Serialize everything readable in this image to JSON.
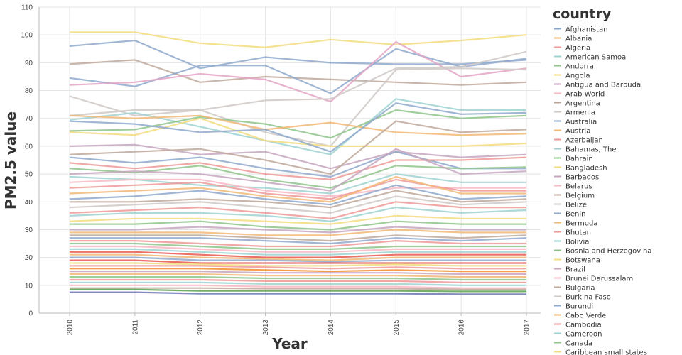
{
  "chart_data": {
    "type": "line",
    "title": "",
    "xlabel": "Year",
    "ylabel": "PM2.5 value",
    "x": [
      "2010",
      "2011",
      "2012",
      "2013",
      "2014",
      "2015",
      "2016",
      "2017"
    ],
    "ylim": [
      0,
      110
    ],
    "yticks": [
      0,
      10,
      20,
      30,
      40,
      50,
      60,
      70,
      80,
      90,
      100,
      110
    ],
    "grid": true,
    "legend": {
      "title": "country",
      "placement": "right",
      "entries": [
        {
          "name": "Afghanistan",
          "color": "#8fa9cc"
        },
        {
          "name": "Albania",
          "color": "#f2b877"
        },
        {
          "name": "Algeria",
          "color": "#ee9a99"
        },
        {
          "name": "American Samoa",
          "color": "#9fd3d1"
        },
        {
          "name": "Andorra",
          "color": "#8fc48b"
        },
        {
          "name": "Angola",
          "color": "#f3dc7f"
        },
        {
          "name": "Antigua and Barbuda",
          "color": "#c7a6c0"
        },
        {
          "name": "Arab World",
          "color": "#f7b9c3"
        },
        {
          "name": "Argentina",
          "color": "#bfa99c"
        },
        {
          "name": "Armenia",
          "color": "#cfc9c6"
        },
        {
          "name": "Australia",
          "color": "#8fa9cc"
        },
        {
          "name": "Austria",
          "color": "#f2b877"
        },
        {
          "name": "Azerbaijan",
          "color": "#ee9a99"
        },
        {
          "name": "Bahamas, The",
          "color": "#9fd3d1"
        },
        {
          "name": "Bahrain",
          "color": "#8fc48b"
        },
        {
          "name": "Bangladesh",
          "color": "#f3dc7f"
        },
        {
          "name": "Barbados",
          "color": "#c7a6c0"
        },
        {
          "name": "Belarus",
          "color": "#f7b9c3"
        },
        {
          "name": "Belgium",
          "color": "#bfa99c"
        },
        {
          "name": "Belize",
          "color": "#cfc9c6"
        },
        {
          "name": "Benin",
          "color": "#8fa9cc"
        },
        {
          "name": "Bermuda",
          "color": "#f2b877"
        },
        {
          "name": "Bhutan",
          "color": "#ee9a99"
        },
        {
          "name": "Bolivia",
          "color": "#9fd3d1"
        },
        {
          "name": "Bosnia and Herzegovina",
          "color": "#8fc48b"
        },
        {
          "name": "Botswana",
          "color": "#f3dc7f"
        },
        {
          "name": "Brazil",
          "color": "#c7a6c0"
        },
        {
          "name": "Brunei Darussalam",
          "color": "#f7b9c3"
        },
        {
          "name": "Bulgaria",
          "color": "#bfa99c"
        },
        {
          "name": "Burkina Faso",
          "color": "#cfc9c6"
        },
        {
          "name": "Burundi",
          "color": "#8fa9cc"
        },
        {
          "name": "Cabo Verde",
          "color": "#f2b877"
        },
        {
          "name": "Cambodia",
          "color": "#ee9a99"
        },
        {
          "name": "Cameroon",
          "color": "#9fd3d1"
        },
        {
          "name": "Canada",
          "color": "#8fc48b"
        },
        {
          "name": "Caribbean small states",
          "color": "#f3dc7f"
        }
      ]
    },
    "series": [
      {
        "values": [
          101,
          101,
          97,
          95.5,
          98.3,
          96.5,
          98,
          100
        ],
        "color": "#f3dc7f"
      },
      {
        "values": [
          96,
          98,
          88,
          92,
          90,
          89.5,
          89.5,
          91
        ],
        "color": "#8fa9cc"
      },
      {
        "values": [
          89.5,
          91,
          83,
          85,
          84,
          83,
          82,
          83
        ],
        "color": "#bfa99c"
      },
      {
        "values": [
          84.5,
          81.5,
          89,
          89,
          79,
          95,
          88.5,
          91.5
        ],
        "color": "#8fa9cc"
      },
      {
        "values": [
          82,
          83,
          86,
          84,
          76,
          97.5,
          85,
          88
        ],
        "color": "#e4a4c6"
      },
      {
        "values": [
          78,
          71,
          73,
          76.5,
          77,
          88,
          88.5,
          94
        ],
        "color": "#cfc9c6"
      },
      {
        "values": [
          71,
          73,
          73,
          65,
          60,
          87.5,
          88,
          87.5
        ],
        "color": "#cfc9c6"
      },
      {
        "values": [
          69.5,
          72,
          67,
          62,
          57,
          77,
          73,
          73
        ],
        "color": "#9fd3d1"
      },
      {
        "values": [
          65.5,
          66,
          70.5,
          68,
          63,
          73,
          70,
          71
        ],
        "color": "#8fc48b"
      },
      {
        "values": [
          71,
          70,
          71,
          66,
          68.5,
          65,
          64,
          64.5
        ],
        "color": "#f2b877"
      },
      {
        "values": [
          65,
          64,
          70,
          62,
          60,
          60,
          60,
          61
        ],
        "color": "#f3dc7f"
      },
      {
        "values": [
          69,
          68,
          65,
          66,
          58,
          75.5,
          71.5,
          72
        ],
        "color": "#8fa9cc"
      },
      {
        "values": [
          60,
          60.5,
          57,
          58,
          52,
          58,
          56,
          57
        ],
        "color": "#c7a6c0"
      },
      {
        "values": [
          57,
          58,
          59,
          55,
          50,
          69,
          65,
          66
        ],
        "color": "#bfa99c"
      },
      {
        "values": [
          56,
          54,
          56,
          52,
          49,
          58,
          52,
          52
        ],
        "color": "#8fa9cc"
      },
      {
        "values": [
          54,
          52,
          54,
          50,
          48,
          55,
          55,
          56
        ],
        "color": "#ee9a99"
      },
      {
        "values": [
          52,
          50.5,
          53,
          48,
          45,
          53,
          52,
          52.5
        ],
        "color": "#8fc48b"
      },
      {
        "values": [
          50,
          51,
          50,
          47,
          44,
          59,
          50,
          51
        ],
        "color": "#c7a6c0"
      },
      {
        "values": [
          49,
          48,
          46,
          45,
          43,
          50,
          47,
          47
        ],
        "color": "#9fd3d1"
      },
      {
        "values": [
          47,
          48,
          48,
          44,
          42,
          45,
          45,
          45
        ],
        "color": "#f7b9c3"
      },
      {
        "values": [
          45,
          46,
          47,
          43,
          41,
          48,
          44,
          44
        ],
        "color": "#ee9a99"
      },
      {
        "values": [
          43,
          44,
          45,
          42,
          40,
          49,
          43,
          43
        ],
        "color": "#f2b877"
      },
      {
        "values": [
          41,
          42,
          44,
          41,
          39,
          46,
          41,
          42
        ],
        "color": "#8fa9cc"
      },
      {
        "values": [
          40,
          40,
          41,
          40,
          38,
          44,
          40,
          41
        ],
        "color": "#bfa99c"
      },
      {
        "values": [
          38,
          39,
          40,
          38,
          36,
          42,
          39,
          40
        ],
        "color": "#cfc9c6"
      },
      {
        "values": [
          36,
          37,
          38,
          36,
          34,
          40,
          38,
          38
        ],
        "color": "#ee9a99"
      },
      {
        "values": [
          35,
          36,
          36,
          35,
          33,
          38,
          36,
          37
        ],
        "color": "#9fd3d1"
      },
      {
        "values": [
          33,
          34,
          34,
          33,
          32,
          35,
          34,
          34
        ],
        "color": "#f3dc7f"
      },
      {
        "values": [
          32,
          32,
          33,
          31,
          30,
          33,
          32,
          32
        ],
        "color": "#8fc48b"
      },
      {
        "values": [
          30,
          30,
          31,
          30,
          29,
          31,
          30,
          30
        ],
        "color": "#c7a6c0"
      },
      {
        "values": [
          29,
          29,
          29,
          28,
          28,
          30,
          29,
          29
        ],
        "color": "#f2b877"
      },
      {
        "values": [
          28,
          28,
          28,
          27,
          26,
          28,
          27,
          28
        ],
        "color": "#bfa99c"
      },
      {
        "values": [
          27,
          27,
          27,
          26,
          25,
          27,
          26,
          27
        ],
        "color": "#8fa9cc"
      },
      {
        "values": [
          26,
          26,
          25,
          24,
          24,
          26,
          25,
          25
        ],
        "color": "#ee9a99"
      },
      {
        "values": [
          25,
          25,
          24,
          23,
          23,
          24,
          24,
          24
        ],
        "color": "#8fc48b"
      },
      {
        "values": [
          24,
          24,
          23,
          22,
          22,
          23,
          23,
          23
        ],
        "color": "#f7b9c3"
      },
      {
        "values": [
          23,
          23,
          22,
          21,
          21,
          22,
          22,
          22
        ],
        "color": "#9fd3d1"
      },
      {
        "values": [
          22,
          22,
          21,
          20,
          20,
          21,
          21,
          21
        ],
        "color": "#e8584f"
      },
      {
        "values": [
          21,
          21,
          20,
          19.5,
          19,
          20,
          20,
          20
        ],
        "color": "#f2b877"
      },
      {
        "values": [
          20,
          20,
          19,
          19,
          18.5,
          19,
          19,
          19
        ],
        "color": "#8fa9cc"
      },
      {
        "values": [
          19,
          19,
          18,
          18,
          18,
          18,
          18,
          18
        ],
        "color": "#e8584f"
      },
      {
        "values": [
          18,
          18,
          17.5,
          17,
          17,
          17.5,
          17,
          17
        ],
        "color": "#f3dc7f"
      },
      {
        "values": [
          17,
          17,
          17,
          16.5,
          16,
          16.5,
          16,
          16
        ],
        "color": "#ee9a99"
      },
      {
        "values": [
          16,
          16,
          16,
          15.5,
          15,
          15.5,
          15,
          15
        ],
        "color": "#f28e2b"
      },
      {
        "values": [
          15,
          15,
          15,
          14.5,
          14.5,
          14.5,
          14,
          14
        ],
        "color": "#c7a6c0"
      },
      {
        "values": [
          14,
          14,
          14,
          13.5,
          13.5,
          13.5,
          13,
          13
        ],
        "color": "#f2b877"
      },
      {
        "values": [
          13,
          13,
          13,
          12.5,
          12.5,
          12.5,
          12,
          12
        ],
        "color": "#8fc48b"
      },
      {
        "values": [
          12,
          12,
          12,
          11.5,
          11.5,
          11.5,
          11,
          11
        ],
        "color": "#ee9a99"
      },
      {
        "values": [
          11,
          11,
          11,
          10.5,
          10.5,
          10.5,
          10,
          10
        ],
        "color": "#9fd3d1"
      },
      {
        "values": [
          10,
          10,
          10,
          9.5,
          9.5,
          9.5,
          9,
          9
        ],
        "color": "#f7b9c3"
      },
      {
        "values": [
          9,
          9,
          9,
          8.8,
          8.8,
          8.8,
          8.5,
          8.5
        ],
        "color": "#bfa99c"
      },
      {
        "values": [
          8.5,
          8.5,
          8,
          8,
          8,
          8,
          7.8,
          7.8
        ],
        "color": "#59a14f"
      },
      {
        "values": [
          7.5,
          7.5,
          7,
          7,
          7,
          7,
          6.8,
          6.8
        ],
        "color": "#6f78b3"
      }
    ]
  }
}
